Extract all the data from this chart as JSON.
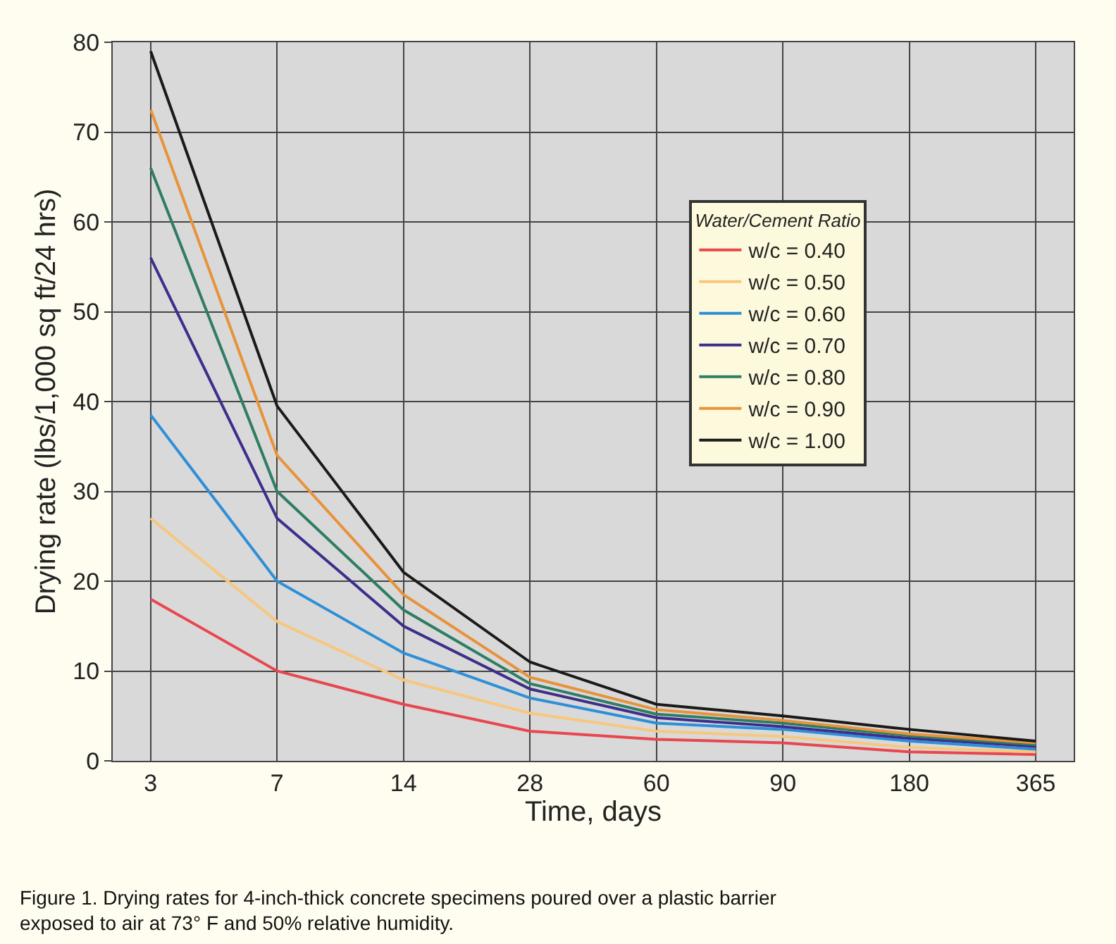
{
  "chart_data": {
    "type": "line",
    "xlabel": "Time, days",
    "ylabel": "Drying rate (lbs/1,000 sq ft/24 hrs)",
    "legend_title": "Water/Cement Ratio",
    "legend": "top right",
    "grid": true,
    "marker": "none",
    "line_style": "solid",
    "categories": [
      "3",
      "7",
      "14",
      "28",
      "60",
      "90",
      "180",
      "365"
    ],
    "ylim": [
      0,
      80
    ],
    "yticks": [
      0,
      10,
      20,
      30,
      40,
      50,
      60,
      70,
      80
    ],
    "series": [
      {
        "name": "w/c = 0.40",
        "color": "#e8474f",
        "values": [
          18,
          10,
          6.3,
          3.3,
          2.4,
          2,
          1,
          0.7
        ]
      },
      {
        "name": "w/c = 0.50",
        "color": "#f7c77e",
        "values": [
          27,
          15.5,
          9,
          5.3,
          3.3,
          2.7,
          1.5,
          1
        ]
      },
      {
        "name": "w/c = 0.60",
        "color": "#2e8fd8",
        "values": [
          38.5,
          20,
          12,
          7,
          4.2,
          3.5,
          2.2,
          1.3
        ]
      },
      {
        "name": "w/c = 0.70",
        "color": "#3b2f8c",
        "values": [
          56,
          27,
          15,
          8,
          4.8,
          3.8,
          2.5,
          1.6
        ]
      },
      {
        "name": "w/c = 0.80",
        "color": "#2e7d64",
        "values": [
          66,
          30,
          16.8,
          8.6,
          5.2,
          4.2,
          2.8,
          1.8
        ]
      },
      {
        "name": "w/c = 0.90",
        "color": "#e8923a",
        "values": [
          72.5,
          34,
          18.5,
          9.3,
          5.7,
          4.5,
          3,
          2
        ]
      },
      {
        "name": "w/c = 1.00",
        "color": "#1a1a1a",
        "values": [
          79,
          39.5,
          21,
          11,
          6.3,
          5,
          3.5,
          2.2
        ]
      }
    ],
    "annotations": [
      "Figure 1. Drying rates for 4-inch-thick concrete specimens poured over a plastic barrier exposed to air at 73° F and 50% relative humidity."
    ]
  }
}
